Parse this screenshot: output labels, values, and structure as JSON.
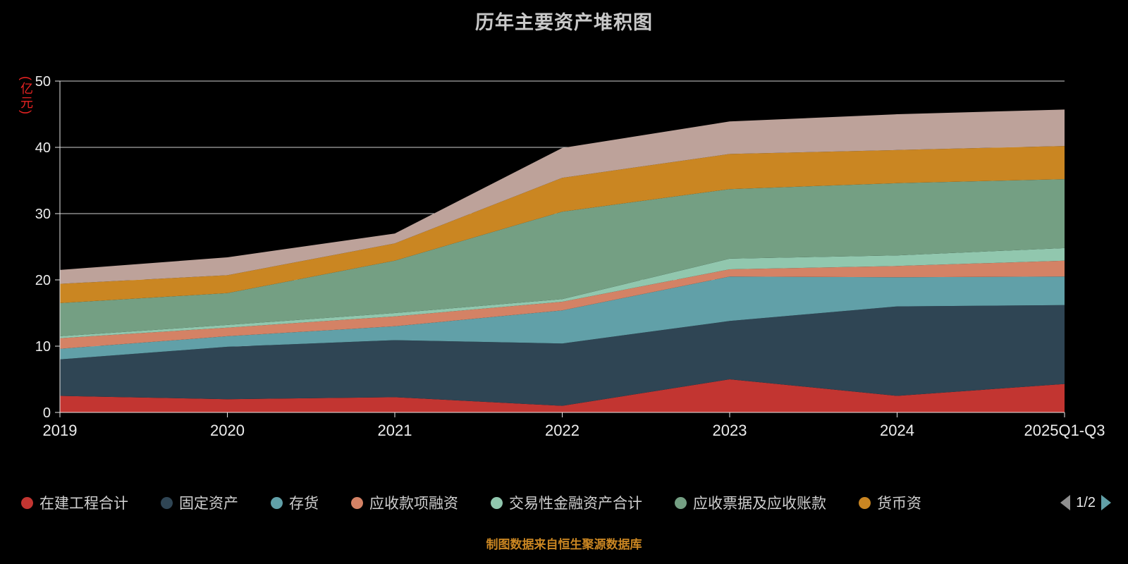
{
  "title": "历年主要资产堆积图",
  "y_unit": "(亿元)",
  "caption": "制图数据来自恒生聚源数据库",
  "pagination": {
    "current": "1/2"
  },
  "colors": {
    "background": "#000000",
    "title_text": "#c9c9c9",
    "axis_text": "#ededed",
    "gridline": "#cfcfcf",
    "unit_label": "#e62222",
    "caption_text": "#ca8622",
    "pager_next": "#61a0a8",
    "pager_prev": "#8f8f8f"
  },
  "chart_data": {
    "type": "area",
    "stacked": true,
    "title": "历年主要资产堆积图",
    "ylabel": "(亿元)",
    "ylim": [
      0,
      50
    ],
    "y_ticks": [
      0,
      10,
      20,
      30,
      40,
      50
    ],
    "grid": true,
    "legend_position": "bottom",
    "legend_visible_count": 7,
    "x": [
      "2019",
      "2020",
      "2021",
      "2022",
      "2023",
      "2024",
      "2025Q1-Q3"
    ],
    "series": [
      {
        "name": "在建工程合计",
        "color": "#c23531",
        "values": [
          2.5,
          2.0,
          2.3,
          1.0,
          5.0,
          2.5,
          4.3
        ]
      },
      {
        "name": "固定资产",
        "color": "#2f4554",
        "values": [
          5.5,
          7.9,
          8.6,
          9.4,
          8.8,
          13.5,
          11.9
        ]
      },
      {
        "name": "存货",
        "color": "#61a0a8",
        "values": [
          1.6,
          1.6,
          2.1,
          5.0,
          6.7,
          4.4,
          4.3
        ]
      },
      {
        "name": "应收款项融资",
        "color": "#d48265",
        "values": [
          1.6,
          1.3,
          1.5,
          1.3,
          1.1,
          1.7,
          2.4
        ]
      },
      {
        "name": "交易性金融资产合计",
        "color": "#91c7ae",
        "values": [
          0.3,
          0.4,
          0.5,
          0.4,
          1.6,
          1.6,
          1.9
        ]
      },
      {
        "name": "应收票据及应收账款",
        "color": "#749f83",
        "values": [
          5.0,
          4.8,
          7.9,
          13.2,
          10.5,
          10.9,
          10.4
        ]
      },
      {
        "name": "货币资",
        "color": "#ca8622",
        "values": [
          2.9,
          2.7,
          2.6,
          5.1,
          5.3,
          5.0,
          5.0
        ]
      },
      {
        "name": "",
        "color": "#bda29a",
        "values": [
          2.1,
          2.7,
          1.5,
          4.5,
          4.9,
          5.4,
          5.5
        ]
      }
    ]
  }
}
